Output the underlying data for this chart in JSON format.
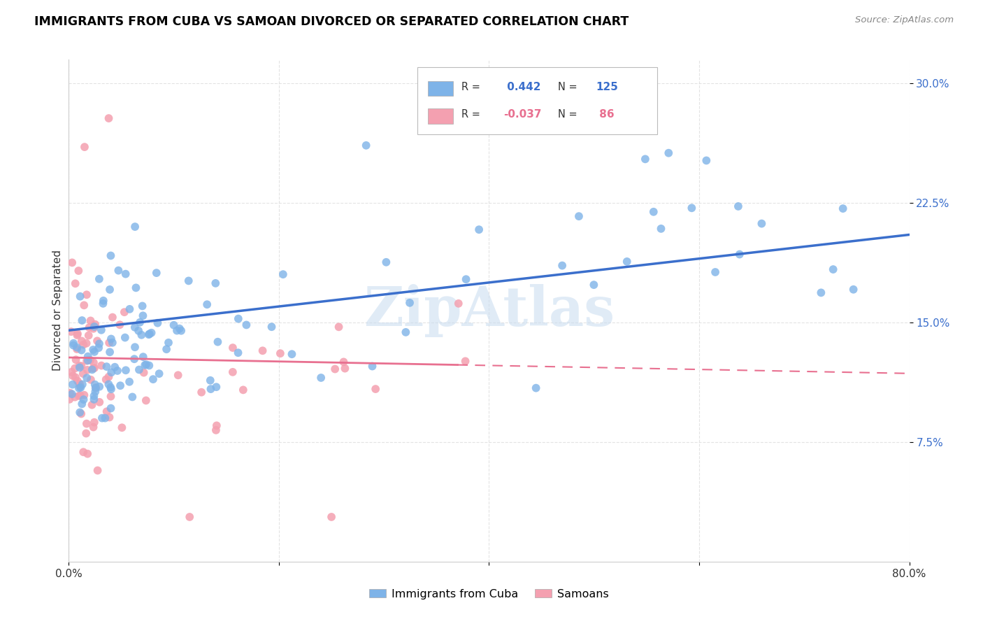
{
  "title": "IMMIGRANTS FROM CUBA VS SAMOAN DIVORCED OR SEPARATED CORRELATION CHART",
  "source": "Source: ZipAtlas.com",
  "ylabel": "Divorced or Separated",
  "ytick_labels": [
    "7.5%",
    "15.0%",
    "22.5%",
    "30.0%"
  ],
  "ytick_values": [
    0.075,
    0.15,
    0.225,
    0.3
  ],
  "xlim": [
    0.0,
    0.8
  ],
  "ylim": [
    0.0,
    0.315
  ],
  "blue_R": 0.442,
  "blue_N": 125,
  "pink_R": -0.037,
  "pink_N": 86,
  "blue_color": "#7EB3E8",
  "pink_color": "#F4A0B0",
  "blue_line_color": "#3B6FCC",
  "pink_line_color": "#E87090",
  "watermark": "ZipAtlas",
  "legend_blue_label": "Immigrants from Cuba",
  "legend_pink_label": "Samoans"
}
